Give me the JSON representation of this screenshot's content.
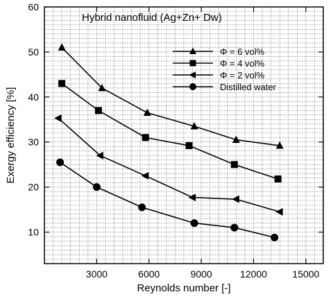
{
  "chart_data": {
    "type": "line",
    "title": "Hybrid nanofluid (Ag+Zn+ Dw)",
    "xlabel": "Reynolds number  [-]",
    "ylabel": "Exergy efficiency [%]",
    "xlim": [
      0,
      16000
    ],
    "ylim": [
      3,
      60
    ],
    "xticks": [
      "3000",
      "6000",
      "9000",
      "12000",
      "15000"
    ],
    "yticks": [
      "10",
      "20",
      "30",
      "40",
      "50",
      "60"
    ],
    "grid": true,
    "legend_position": "top-right",
    "series": [
      {
        "name": "Φ = 6 vol%",
        "marker": "triangle-up",
        "x": [
          1000,
          3300,
          5900,
          8600,
          11000,
          13500
        ],
        "y": [
          51,
          42,
          36.5,
          33.5,
          30.5,
          29.2
        ]
      },
      {
        "name": "Φ = 4 vol%",
        "marker": "square",
        "x": [
          1000,
          3100,
          5800,
          8300,
          10900,
          13400
        ],
        "y": [
          43,
          37,
          31,
          29.2,
          25,
          21.8
        ]
      },
      {
        "name": "Φ = 2 vol%",
        "marker": "triangle-left",
        "x": [
          800,
          3200,
          5800,
          8500,
          11000,
          13500
        ],
        "y": [
          35.3,
          27,
          22.5,
          17.7,
          17.3,
          14.5
        ]
      },
      {
        "name": "Distilled water",
        "marker": "circle",
        "x": [
          900,
          3000,
          5600,
          8600,
          10900,
          13200
        ],
        "y": [
          25.5,
          20,
          15.5,
          12,
          11,
          8.8
        ]
      }
    ]
  }
}
